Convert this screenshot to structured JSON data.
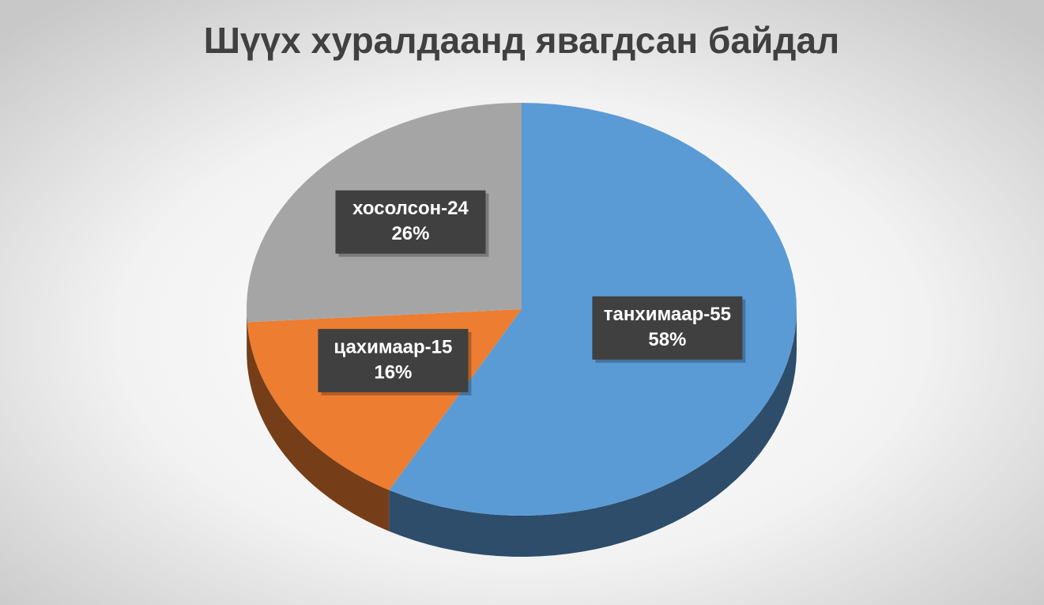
{
  "chart_data": {
    "type": "pie",
    "title": "Шүүх хуралдаанд явагдсан байдал",
    "categories": [
      "танхимаар-55",
      "цахимаар-15",
      "хосолсон-24"
    ],
    "values": [
      58,
      16,
      26
    ],
    "value_labels": [
      "58%",
      "16%",
      "26%"
    ],
    "colors": [
      "#5b9bd5",
      "#ed7d31",
      "#a5a5a5"
    ]
  }
}
